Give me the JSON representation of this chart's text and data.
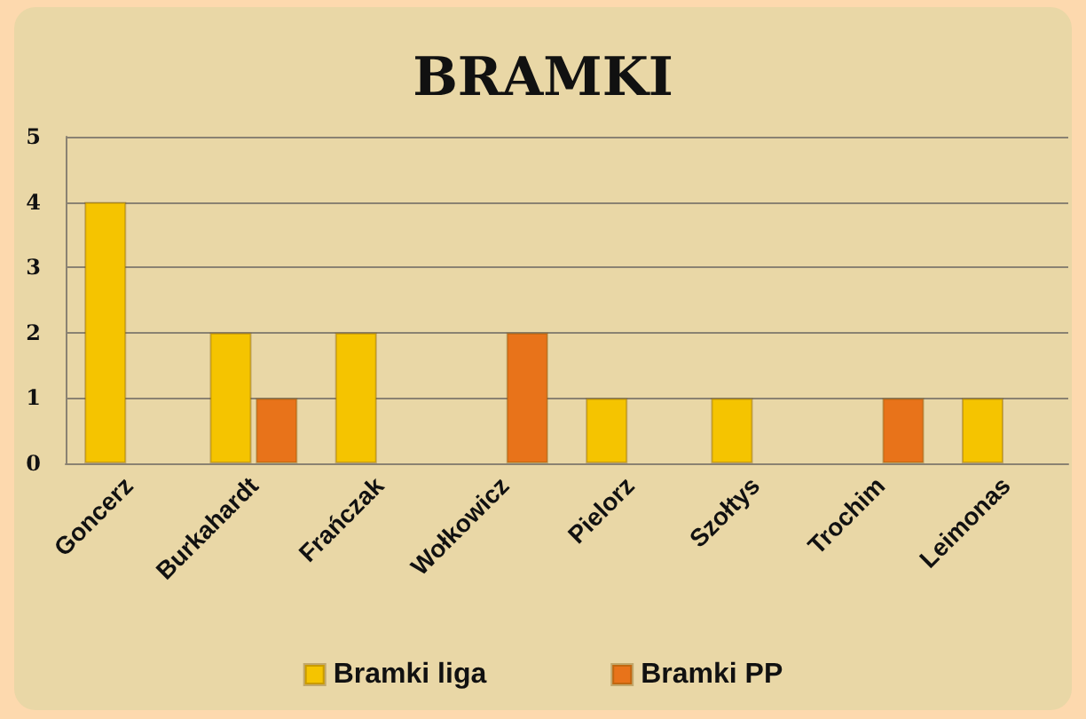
{
  "chart_data": {
    "type": "bar",
    "title": "BRAMKI",
    "categories": [
      "Goncerz",
      "Burkahardt",
      "Frańczak",
      "Wołkowicz",
      "Pielorz",
      "Szołtys",
      "Trochim",
      "Leimonas"
    ],
    "series": [
      {
        "name": "Bramki liga",
        "color": "#f5c400",
        "values": [
          4,
          2,
          2,
          null,
          1,
          1,
          null,
          1
        ]
      },
      {
        "name": "Bramki PP",
        "color": "#e8731a",
        "values": [
          null,
          1,
          null,
          2,
          null,
          null,
          1,
          null
        ]
      }
    ],
    "ylim": [
      0,
      5
    ],
    "yticks": [
      0,
      1,
      2,
      3,
      4,
      5
    ],
    "grid": "y",
    "legend": "bottom"
  }
}
